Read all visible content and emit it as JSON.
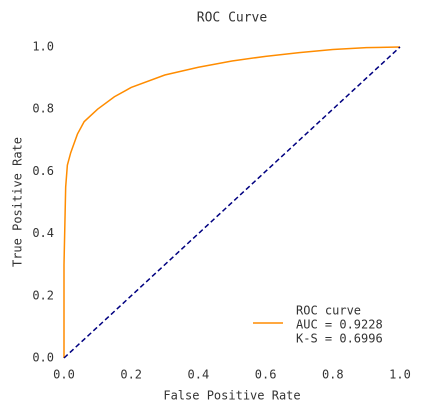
{
  "chart_data": {
    "type": "line",
    "title": "ROC Curve",
    "x_label": "False Positive Rate",
    "y_label": "True Positive Rate",
    "xlim": [
      0,
      1
    ],
    "ylim": [
      0,
      1
    ],
    "xticks": [
      {
        "value": 0,
        "label": "0.0"
      },
      0.2,
      0.4,
      0.6,
      0.8,
      {
        "value": 1,
        "label": "1.0"
      }
    ],
    "yticks": [
      {
        "value": 0,
        "label": "0.0"
      },
      0.2,
      0.4,
      0.6,
      0.8,
      {
        "value": 1,
        "label": "1.0"
      }
    ],
    "grid": false,
    "legend": "lower right",
    "legend_notes": [
      "AUC = 0.9228",
      "K-S = 0.6996"
    ],
    "series": [
      {
        "name": "ROC curve",
        "color": "#ff8c00",
        "dash": false,
        "x": [
          0,
          0,
          0.005,
          0.01,
          0.02,
          0.04,
          0.06,
          0.1,
          0.15,
          0.2,
          0.3,
          0.4,
          0.5,
          0.6,
          0.7,
          0.8,
          0.9,
          1
        ],
        "values": [
          0,
          0.3,
          0.55,
          0.62,
          0.66,
          0.72,
          0.76,
          0.8,
          0.84,
          0.87,
          0.91,
          0.935,
          0.955,
          0.97,
          0.982,
          0.992,
          0.998,
          1
        ]
      },
      {
        "color": "#000080",
        "dash": true,
        "x": [
          0,
          1
        ],
        "values": [
          0,
          1
        ]
      }
    ]
  }
}
